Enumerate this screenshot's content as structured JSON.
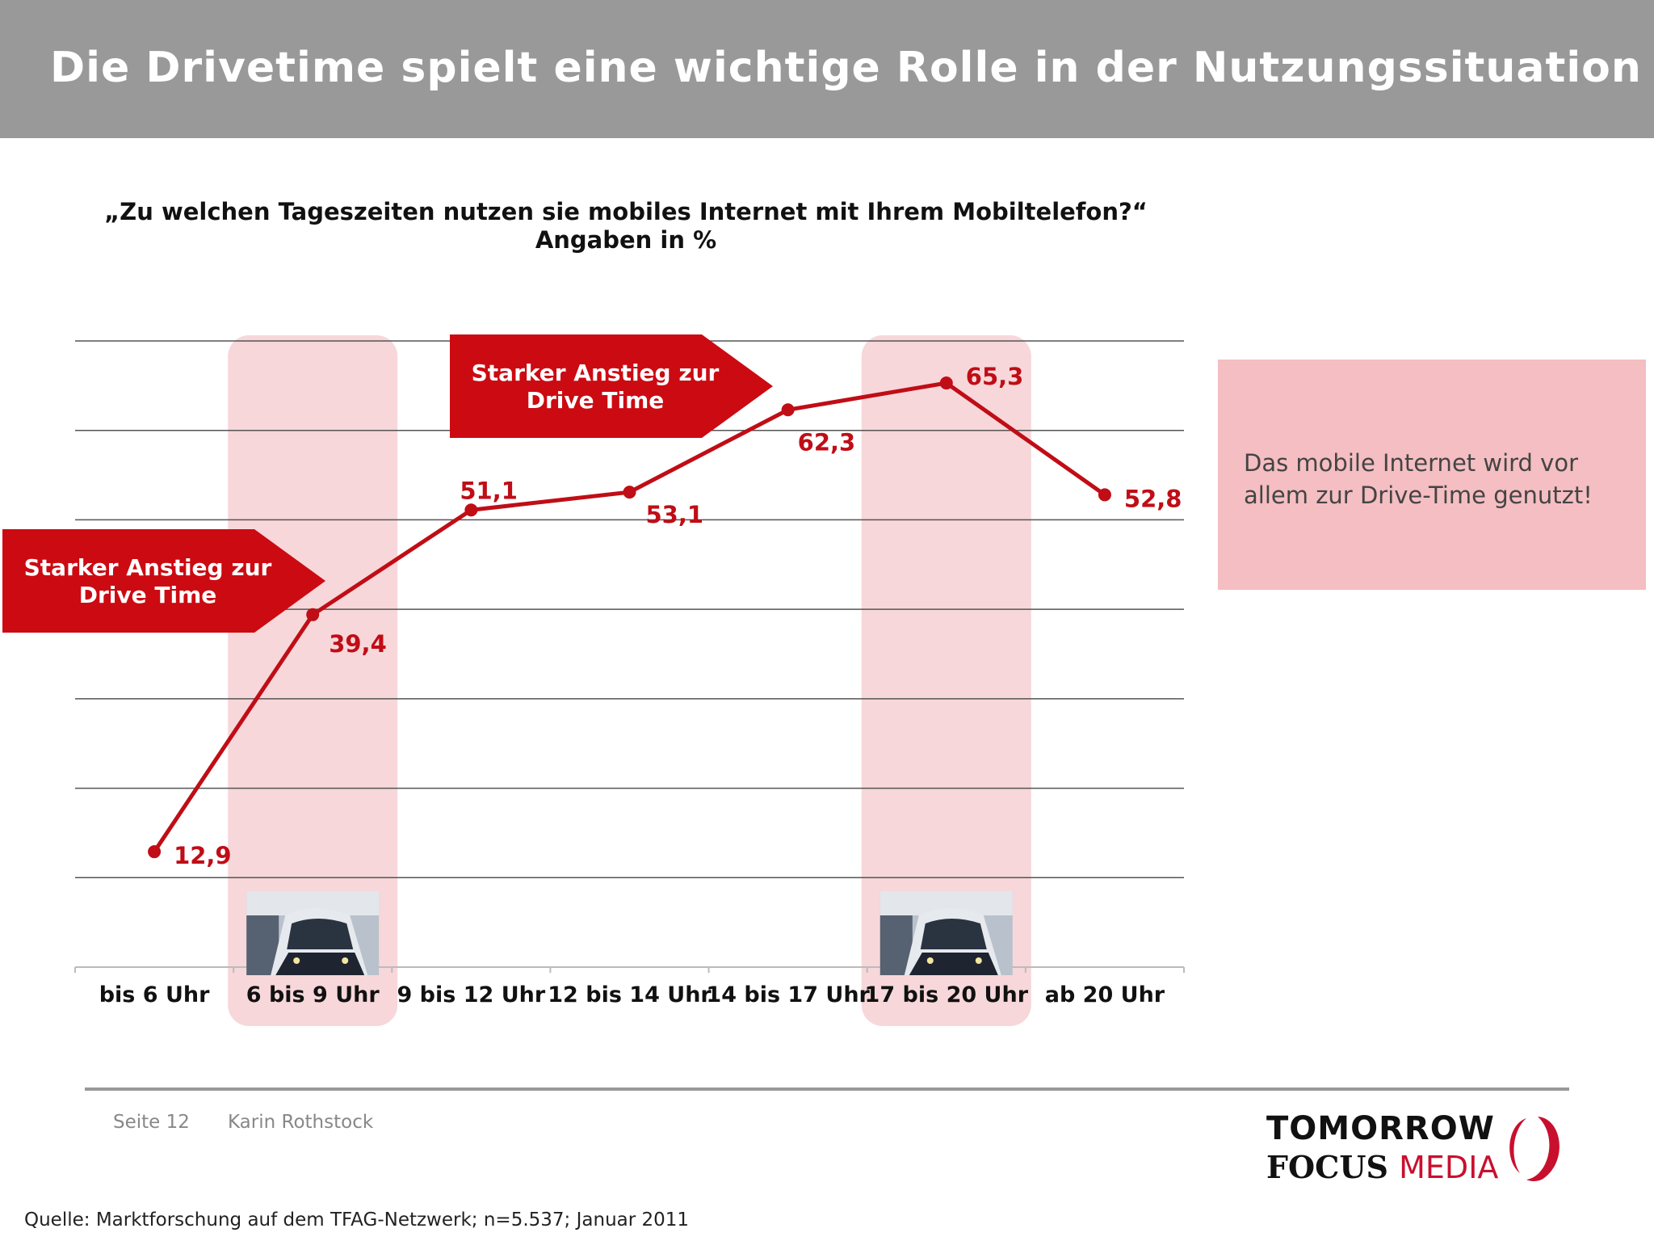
{
  "header": {
    "title": "Die Drivetime spielt eine wichtige Rolle in der Nutzungssituation"
  },
  "chart_title": {
    "question": "„Zu welchen Tageszeiten nutzen sie mobiles Internet mit Ihrem Mobiltelefon?“",
    "unit_line": "Angaben in %"
  },
  "chart_data": {
    "type": "line",
    "categories": [
      "bis 6 Uhr",
      "6 bis 9 Uhr",
      "9 bis 12 Uhr",
      "12 bis 14 Uhr",
      "14 bis 17 Uhr",
      "17 bis 20 Uhr",
      "ab 20 Uhr"
    ],
    "values": [
      12.9,
      39.4,
      51.1,
      53.1,
      62.3,
      65.3,
      52.8
    ],
    "value_labels": [
      "12,9",
      "39,4",
      "51,1",
      "53,1",
      "62,3",
      "65,3",
      "52,8"
    ],
    "ylim": [
      0,
      70
    ],
    "grid": true,
    "highlighted_categories": [
      "6 bis 9 Uhr",
      "17 bis 20 Uhr"
    ],
    "colors": {
      "line": "#c00d16",
      "highlight": "#f7d7da",
      "arrow": "#cc0a12",
      "grid": "#555555"
    }
  },
  "annotations": {
    "arrow_labels": [
      "Starker Anstieg zur Drive Time",
      "Starker Anstieg zur Drive Time"
    ],
    "callout": "Das mobile Internet wird vor allem zur Drive-Time genutzt!",
    "callout_color": "#f4bec2",
    "train_icon": "train-photo-icon"
  },
  "footer": {
    "page": "Seite 12",
    "author": "Karin Rothstock",
    "source": "Quelle: Marktforschung auf dem TFAG-Netzwerk; n=5.537; Januar 2011"
  },
  "logo": {
    "line1": "TOMORROW",
    "focus": "FOCUS",
    "media": "MEDIA"
  }
}
